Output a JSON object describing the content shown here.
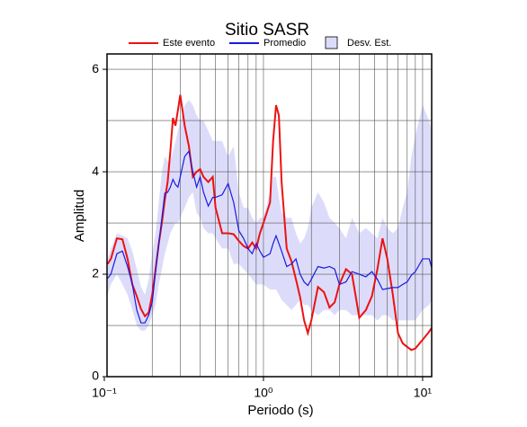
{
  "chart_data": {
    "type": "line",
    "title": "Sitio SASR",
    "x_label": "Periodo (s)",
    "y_label": "Amplitud",
    "xscale": "log",
    "xlim": [
      0.104,
      11.4
    ],
    "ylim": [
      0,
      6.3
    ],
    "xticks": [
      {
        "value": 0.1,
        "label": "10⁻¹"
      },
      {
        "value": 1,
        "label": "10⁰"
      },
      {
        "value": 10,
        "label": "10¹"
      }
    ],
    "xminor": [
      0.2,
      0.3,
      0.4,
      0.5,
      0.6,
      0.7,
      0.8,
      0.9,
      2,
      3,
      4,
      5,
      6,
      7,
      8,
      9
    ],
    "yticks": [
      0,
      2,
      4,
      6
    ],
    "yminor": [
      1,
      3,
      5
    ],
    "grid": true,
    "x": [
      0.105,
      0.11,
      0.12,
      0.13,
      0.14,
      0.15,
      0.16,
      0.17,
      0.18,
      0.19,
      0.2,
      0.21,
      0.22,
      0.23,
      0.24,
      0.25,
      0.26,
      0.27,
      0.28,
      0.29,
      0.3,
      0.32,
      0.34,
      0.36,
      0.38,
      0.4,
      0.42,
      0.45,
      0.48,
      0.5,
      0.55,
      0.6,
      0.65,
      0.7,
      0.75,
      0.8,
      0.85,
      0.9,
      0.95,
      1.0,
      1.1,
      1.15,
      1.2,
      1.25,
      1.3,
      1.4,
      1.5,
      1.6,
      1.7,
      1.8,
      1.9,
      2.0,
      2.2,
      2.4,
      2.6,
      2.8,
      3.0,
      3.3,
      3.6,
      4.0,
      4.4,
      4.8,
      5.2,
      5.6,
      6.0,
      6.5,
      7.0,
      7.5,
      8.0,
      8.5,
      9,
      10,
      11,
      11.4
    ],
    "band": {
      "name": "Desv. Est.",
      "color": "#dcdcfa",
      "lower": [
        1.6,
        1.8,
        2.0,
        1.8,
        1.6,
        1.3,
        1.0,
        0.9,
        0.9,
        1.0,
        1.2,
        1.4,
        1.8,
        2.1,
        2.4,
        2.6,
        2.8,
        2.9,
        3.0,
        3.0,
        3.1,
        3.3,
        3.5,
        3.6,
        3.2,
        3.1,
        2.9,
        2.8,
        2.8,
        2.7,
        2.5,
        2.5,
        2.2,
        2.2,
        2.1,
        2.0,
        1.9,
        1.8,
        1.8,
        1.8,
        1.7,
        1.7,
        1.7,
        1.6,
        1.5,
        1.4,
        1.3,
        1.4,
        1.5,
        1.4,
        1.4,
        1.3,
        1.2,
        1.3,
        1.3,
        1.2,
        1.3,
        1.3,
        1.2,
        1.2,
        1.2,
        1.2,
        1.1,
        1.2,
        1.2,
        1.1,
        1.1,
        1.1,
        1.1,
        1.1,
        1.1,
        1.3,
        1.4,
        1.5
      ],
      "upper": [
        2.3,
        2.5,
        2.8,
        2.75,
        2.7,
        2.45,
        2.1,
        1.75,
        1.6,
        1.9,
        2.4,
        2.8,
        3.4,
        4.0,
        4.3,
        4.2,
        4.2,
        4.4,
        4.6,
        4.8,
        5.0,
        5.3,
        5.4,
        5.3,
        5.1,
        5.0,
        5.0,
        4.8,
        4.6,
        4.6,
        4.6,
        4.3,
        4.5,
        3.6,
        3.3,
        3.3,
        3.1,
        3.0,
        3.1,
        3.1,
        3.6,
        3.9,
        3.9,
        3.5,
        3.2,
        3.1,
        3.1,
        2.8,
        2.6,
        2.7,
        2.9,
        3.3,
        3.6,
        3.4,
        3.1,
        3.0,
        2.9,
        2.7,
        3.1,
        2.8,
        2.9,
        2.8,
        2.7,
        3.1,
        2.9,
        2.8,
        2.9,
        3.3,
        3.6,
        4.3,
        4.7,
        5.3,
        5.0,
        4.8
      ]
    },
    "series": [
      {
        "name": "Este evento",
        "color": "#ee1111",
        "values": [
          2.2,
          2.3,
          2.7,
          2.68,
          2.3,
          1.8,
          1.57,
          1.32,
          1.18,
          1.25,
          1.6,
          2.1,
          2.6,
          3.0,
          3.45,
          3.8,
          4.4,
          5.05,
          4.9,
          5.2,
          5.5,
          4.9,
          4.5,
          3.9,
          4.0,
          4.05,
          3.9,
          3.8,
          3.9,
          3.3,
          2.8,
          2.8,
          2.78,
          2.65,
          2.55,
          2.5,
          2.62,
          2.5,
          2.8,
          3.0,
          3.4,
          4.6,
          5.3,
          5.1,
          3.8,
          2.5,
          2.25,
          1.9,
          1.55,
          1.1,
          0.85,
          1.1,
          1.75,
          1.65,
          1.35,
          1.45,
          1.8,
          2.1,
          2.0,
          1.15,
          1.3,
          1.57,
          2.1,
          2.7,
          2.3,
          1.6,
          0.85,
          0.65,
          0.58,
          0.52,
          0.55,
          0.72,
          0.88,
          0.95
        ]
      },
      {
        "name": "Promedio",
        "color": "#1a1ae0",
        "values": [
          1.92,
          2.0,
          2.4,
          2.45,
          2.15,
          1.8,
          1.3,
          1.05,
          1.05,
          1.2,
          1.45,
          2.05,
          2.6,
          3.1,
          3.58,
          3.6,
          3.7,
          3.85,
          3.75,
          3.7,
          3.9,
          4.3,
          4.4,
          4.0,
          3.7,
          3.9,
          3.6,
          3.33,
          3.5,
          3.5,
          3.55,
          3.77,
          3.4,
          2.85,
          2.7,
          2.5,
          2.4,
          2.6,
          2.45,
          2.33,
          2.4,
          2.6,
          2.75,
          2.6,
          2.45,
          2.15,
          2.2,
          2.3,
          2.0,
          1.85,
          1.78,
          1.9,
          2.15,
          2.12,
          2.15,
          2.1,
          1.8,
          1.85,
          2.05,
          2.0,
          1.95,
          2.05,
          1.9,
          1.7,
          1.72,
          1.74,
          1.74,
          1.8,
          1.85,
          1.98,
          2.05,
          2.3,
          2.3,
          2.13
        ]
      }
    ]
  }
}
